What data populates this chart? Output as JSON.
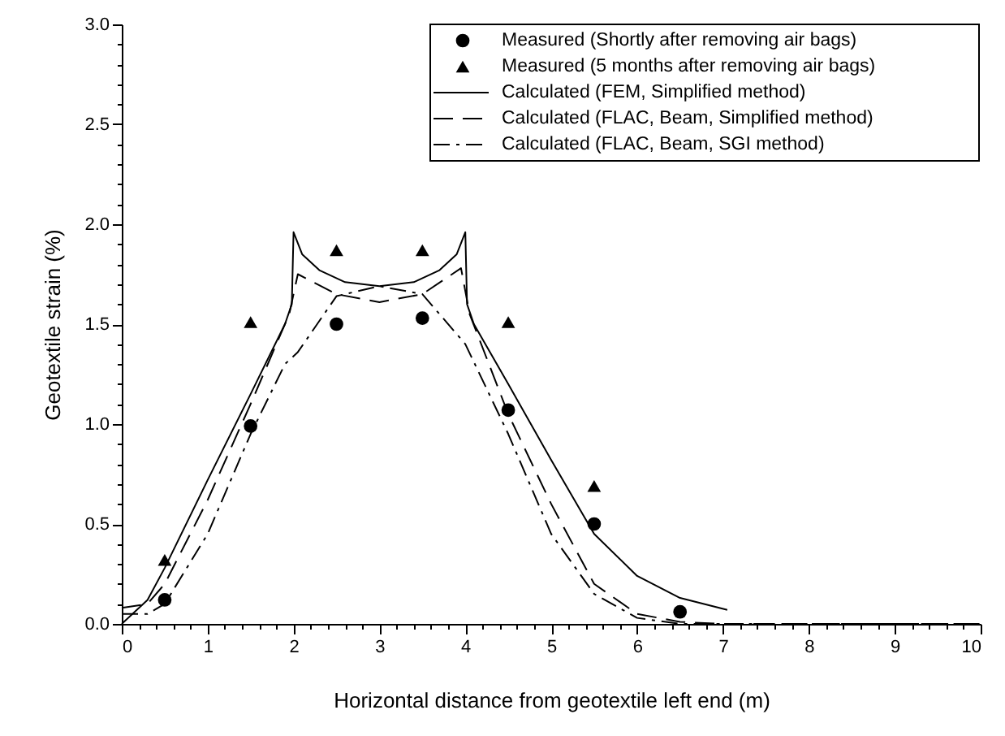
{
  "chart_data": {
    "type": "line",
    "xlabel": "Horizontal distance from geotextile left end (m)",
    "ylabel": "Geotextile strain (%)",
    "xlim": [
      0,
      10
    ],
    "ylim": [
      0,
      3.0
    ],
    "xticks": [
      0,
      1,
      2,
      3,
      4,
      5,
      6,
      7,
      8,
      9,
      10,
      {
        "value": 0.2,
        "label": null
      },
      {
        "value": 0.4,
        "label": null
      },
      {
        "value": 0.6,
        "label": null
      },
      {
        "value": 0.8,
        "label": null
      },
      {
        "value": 1.2,
        "label": null
      },
      {
        "value": 1.4,
        "label": null
      },
      {
        "value": 1.6,
        "label": null
      },
      {
        "value": 1.8,
        "label": null
      },
      {
        "value": 2.2,
        "label": null
      },
      {
        "value": 2.4,
        "label": null
      },
      {
        "value": 2.6,
        "label": null
      },
      {
        "value": 2.8,
        "label": null
      },
      {
        "value": 3.2,
        "label": null
      },
      {
        "value": 3.4,
        "label": null
      },
      {
        "value": 3.6,
        "label": null
      },
      {
        "value": 3.8,
        "label": null
      },
      {
        "value": 4.2,
        "label": null
      },
      {
        "value": 4.4,
        "label": null
      },
      {
        "value": 4.6,
        "label": null
      },
      {
        "value": 4.8,
        "label": null
      },
      {
        "value": 5.2,
        "label": null
      },
      {
        "value": 5.4,
        "label": null
      },
      {
        "value": 5.6,
        "label": null
      },
      {
        "value": 5.8,
        "label": null
      },
      {
        "value": 6.2,
        "label": null
      },
      {
        "value": 6.4,
        "label": null
      },
      {
        "value": 6.6,
        "label": null
      },
      {
        "value": 6.8,
        "label": null
      },
      {
        "value": 7.2,
        "label": null
      },
      {
        "value": 7.4,
        "label": null
      },
      {
        "value": 7.6,
        "label": null
      },
      {
        "value": 7.8,
        "label": null
      },
      {
        "value": 8.2,
        "label": null
      },
      {
        "value": 8.4,
        "label": null
      },
      {
        "value": 8.6,
        "label": null
      },
      {
        "value": 8.8,
        "label": null
      },
      {
        "value": 9.2,
        "label": null
      },
      {
        "value": 9.4,
        "label": null
      },
      {
        "value": 9.6,
        "label": null
      },
      {
        "value": 9.8,
        "label": null
      }
    ],
    "yticks": [
      {
        "value": 0,
        "label": "0.0"
      },
      {
        "value": 0.5,
        "label": "0.5"
      },
      {
        "value": 1,
        "label": "1.0"
      },
      {
        "value": 1.5,
        "label": "1.5"
      },
      {
        "value": 2,
        "label": "2.0"
      },
      {
        "value": 2.5,
        "label": "2.5"
      },
      {
        "value": 3,
        "label": "3.0"
      },
      {
        "value": 0.1,
        "label": null
      },
      {
        "value": 0.2,
        "label": null
      },
      {
        "value": 0.3,
        "label": null
      },
      {
        "value": 0.4,
        "label": null
      },
      {
        "value": 0.6,
        "label": null
      },
      {
        "value": 0.7,
        "label": null
      },
      {
        "value": 0.8,
        "label": null
      },
      {
        "value": 0.9,
        "label": null
      },
      {
        "value": 1.1,
        "label": null
      },
      {
        "value": 1.2,
        "label": null
      },
      {
        "value": 1.3,
        "label": null
      },
      {
        "value": 1.4,
        "label": null
      },
      {
        "value": 1.6,
        "label": null
      },
      {
        "value": 1.7,
        "label": null
      },
      {
        "value": 1.8,
        "label": null
      },
      {
        "value": 1.9,
        "label": null
      },
      {
        "value": 2.1,
        "label": null
      },
      {
        "value": 2.2,
        "label": null
      },
      {
        "value": 2.3,
        "label": null
      },
      {
        "value": 2.4,
        "label": null
      },
      {
        "value": 2.6,
        "label": null
      },
      {
        "value": 2.7,
        "label": null
      },
      {
        "value": 2.8,
        "label": null
      },
      {
        "value": 2.9,
        "label": null
      }
    ],
    "grid": false,
    "legend": "top right",
    "series": [
      {
        "name": "Measured (Shortly after removing air bags)",
        "type": "scatter",
        "marker": "circle",
        "color": "#000000",
        "x": [
          0.5,
          1.5,
          2.5,
          3.5,
          4.5,
          5.5,
          6.5
        ],
        "values": [
          0.12,
          0.99,
          1.5,
          1.53,
          1.07,
          0.5,
          0.06
        ]
      },
      {
        "name": "Measured (5 months after removing air bags)",
        "type": "scatter",
        "marker": "triangle",
        "color": "#000000",
        "x": [
          0.5,
          1.5,
          2.5,
          3.5,
          4.5,
          5.5
        ],
        "values": [
          0.32,
          1.51,
          1.87,
          1.87,
          1.51,
          0.69
        ]
      },
      {
        "name": "Calculated (FEM, Simplified method)",
        "line_style": "solid",
        "color": "#000000",
        "x": [
          0,
          0.3,
          0.5,
          1,
          1.5,
          1.9,
          1.98,
          2.0,
          2.1,
          2.3,
          2.6,
          3.0,
          3.4,
          3.7,
          3.9,
          4.0,
          4.02,
          4.1,
          4.5,
          5,
          5.5,
          6,
          6.5,
          7.05
        ],
        "values": [
          0,
          0.12,
          0.28,
          0.72,
          1.15,
          1.5,
          1.6,
          1.96,
          1.85,
          1.77,
          1.71,
          1.69,
          1.71,
          1.77,
          1.85,
          1.96,
          1.6,
          1.5,
          1.2,
          0.82,
          0.45,
          0.24,
          0.13,
          0.07
        ]
      },
      {
        "name": "Calculated (FLAC, Beam, Simplified method)",
        "line_style": "dashed",
        "color": "#000000",
        "x": [
          0,
          0.3,
          0.5,
          1,
          1.5,
          1.95,
          2.05,
          2.5,
          3,
          3.5,
          3.95,
          4.05,
          4.5,
          5,
          5.5,
          6,
          6.5,
          7,
          8,
          10
        ],
        "values": [
          0.08,
          0.1,
          0.2,
          0.62,
          1.1,
          1.55,
          1.75,
          1.65,
          1.61,
          1.65,
          1.78,
          1.55,
          1.05,
          0.6,
          0.2,
          0.05,
          0.01,
          0,
          0,
          0
        ]
      },
      {
        "name": "Calculated (FLAC, Beam, SGI method)",
        "line_style": "dashdot",
        "color": "#000000",
        "x": [
          0,
          0.3,
          0.5,
          1,
          1.5,
          1.9,
          2.05,
          2.5,
          3,
          3.5,
          4,
          4.5,
          5,
          5.5,
          6,
          6.5,
          8,
          10
        ],
        "values": [
          0.05,
          0.05,
          0.1,
          0.45,
          0.95,
          1.3,
          1.36,
          1.64,
          1.69,
          1.65,
          1.4,
          0.95,
          0.45,
          0.15,
          0.03,
          0,
          0,
          0
        ]
      }
    ]
  }
}
